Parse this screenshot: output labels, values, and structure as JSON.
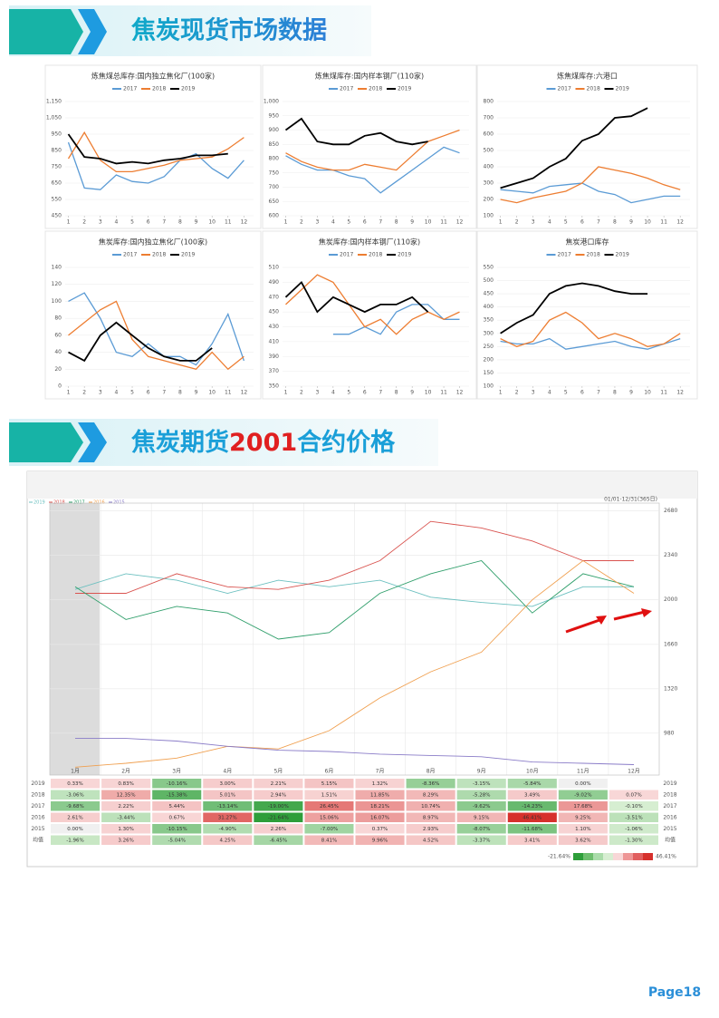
{
  "header1": {
    "title": "焦炭现货市场数据"
  },
  "header2": {
    "part1": "焦炭期货",
    "part2": "2001",
    "part3": "合约价格"
  },
  "page_number": "Page18",
  "chart_data": [
    {
      "type": "line",
      "title": "炼焦煤总库存:国内独立焦化厂(100家)",
      "x": [
        1,
        2,
        3,
        4,
        5,
        6,
        7,
        8,
        9,
        10,
        11,
        12
      ],
      "xlim": [
        0.8,
        12.6
      ],
      "xticks": [
        1,
        2,
        3,
        4,
        5,
        6,
        7,
        8,
        9,
        10,
        11,
        12
      ],
      "ylim": [
        450,
        1150
      ],
      "yticks": [
        450,
        550,
        650,
        750,
        850,
        950,
        {
          "value": 1050,
          "label": "1,050"
        },
        {
          "value": 1150,
          "label": "1,150"
        }
      ],
      "series": [
        {
          "name": "2017",
          "color": "#5b9bd5",
          "values": [
            900,
            620,
            610,
            700,
            660,
            650,
            690,
            790,
            830,
            740,
            680,
            790
          ]
        },
        {
          "name": "2018",
          "color": "#ed7d31",
          "values": [
            800,
            960,
            790,
            720,
            720,
            740,
            760,
            790,
            800,
            810,
            860,
            930
          ]
        },
        {
          "name": "2019",
          "color": "#000000",
          "values": [
            950,
            810,
            800,
            770,
            780,
            770,
            790,
            800,
            820,
            820,
            830,
            null
          ]
        }
      ]
    },
    {
      "type": "line",
      "title": "炼焦煤库存:国内样本钢厂(110家)",
      "x": [
        1,
        2,
        3,
        4,
        5,
        6,
        7,
        8,
        9,
        10,
        11,
        12
      ],
      "xlim": [
        0.8,
        12.6
      ],
      "xticks": [
        1,
        2,
        3,
        4,
        5,
        6,
        7,
        8,
        9,
        10,
        11,
        12
      ],
      "ylim": [
        600,
        1000
      ],
      "yticks": [
        600,
        650,
        700,
        750,
        800,
        850,
        900,
        950,
        {
          "value": 1000,
          "label": "1,000"
        }
      ],
      "series": [
        {
          "name": "2017",
          "color": "#5b9bd5",
          "values": [
            810,
            780,
            760,
            760,
            740,
            730,
            680,
            720,
            760,
            800,
            840,
            820
          ]
        },
        {
          "name": "2018",
          "color": "#ed7d31",
          "values": [
            820,
            790,
            770,
            760,
            760,
            780,
            770,
            760,
            810,
            860,
            880,
            900
          ]
        },
        {
          "name": "2019",
          "color": "#000000",
          "values": [
            900,
            940,
            860,
            850,
            850,
            880,
            890,
            860,
            850,
            860,
            null,
            null
          ]
        }
      ]
    },
    {
      "type": "line",
      "title": "炼焦煤库存:六港口",
      "x": [
        1,
        2,
        3,
        4,
        5,
        6,
        7,
        8,
        9,
        10,
        11,
        12
      ],
      "xlim": [
        0.8,
        12.6
      ],
      "xticks": [
        1,
        2,
        3,
        4,
        5,
        6,
        7,
        8,
        9,
        10,
        11,
        12
      ],
      "ylim": [
        100,
        800
      ],
      "yticks": [
        100,
        200,
        300,
        400,
        500,
        600,
        700,
        800
      ],
      "series": [
        {
          "name": "2017",
          "color": "#5b9bd5",
          "values": [
            260,
            250,
            240,
            280,
            290,
            300,
            250,
            230,
            180,
            200,
            220,
            220
          ]
        },
        {
          "name": "2018",
          "color": "#ed7d31",
          "values": [
            200,
            180,
            210,
            230,
            250,
            300,
            400,
            380,
            360,
            330,
            290,
            260
          ]
        },
        {
          "name": "2019",
          "color": "#000000",
          "values": [
            270,
            300,
            330,
            400,
            450,
            560,
            600,
            700,
            710,
            760,
            null,
            null
          ]
        }
      ]
    },
    {
      "type": "line",
      "title": "焦炭库存:国内独立焦化厂(100家)",
      "x": [
        1,
        2,
        3,
        4,
        5,
        6,
        7,
        8,
        9,
        10,
        11,
        12
      ],
      "xlim": [
        0.8,
        12.6
      ],
      "xticks": [
        1,
        2,
        3,
        4,
        5,
        6,
        7,
        8,
        9,
        10,
        11,
        12
      ],
      "ylim": [
        0,
        140
      ],
      "yticks": [
        0,
        20,
        40,
        60,
        80,
        100,
        120,
        140
      ],
      "series": [
        {
          "name": "2017",
          "color": "#5b9bd5",
          "values": [
            100,
            110,
            80,
            40,
            35,
            50,
            35,
            35,
            25,
            50,
            85,
            30
          ]
        },
        {
          "name": "2018",
          "color": "#ed7d31",
          "values": [
            60,
            75,
            90,
            100,
            55,
            35,
            30,
            25,
            20,
            40,
            20,
            35
          ]
        },
        {
          "name": "2019",
          "color": "#000000",
          "values": [
            40,
            30,
            60,
            75,
            60,
            45,
            35,
            30,
            30,
            45,
            null,
            null
          ]
        }
      ]
    },
    {
      "type": "line",
      "title": "焦炭库存:国内样本钢厂(110家)",
      "x": [
        1,
        2,
        3,
        4,
        5,
        6,
        7,
        8,
        9,
        10,
        11,
        12
      ],
      "xlim": [
        0.8,
        12.6
      ],
      "xticks": [
        1,
        2,
        3,
        4,
        5,
        6,
        7,
        8,
        9,
        10,
        11,
        12
      ],
      "ylim": [
        350,
        510
      ],
      "yticks": [
        350,
        370,
        390,
        410,
        430,
        450,
        470,
        490,
        510
      ],
      "series": [
        {
          "name": "2017",
          "color": "#5b9bd5",
          "values": [
            null,
            null,
            null,
            420,
            420,
            430,
            420,
            450,
            460,
            460,
            440,
            440
          ]
        },
        {
          "name": "2018",
          "color": "#ed7d31",
          "values": [
            460,
            480,
            500,
            490,
            460,
            430,
            440,
            420,
            440,
            450,
            440,
            450
          ]
        },
        {
          "name": "2019",
          "color": "#000000",
          "values": [
            470,
            490,
            450,
            470,
            460,
            450,
            460,
            460,
            470,
            450,
            null,
            null
          ]
        }
      ]
    },
    {
      "type": "line",
      "title": "焦炭港口库存",
      "x": [
        1,
        2,
        3,
        4,
        5,
        6,
        7,
        8,
        9,
        10,
        11,
        12
      ],
      "xlim": [
        0.8,
        12.6
      ],
      "xticks": [
        1,
        2,
        3,
        4,
        5,
        6,
        7,
        8,
        9,
        10,
        11,
        12
      ],
      "ylim": [
        100,
        550
      ],
      "yticks": [
        100,
        150,
        200,
        250,
        300,
        350,
        400,
        450,
        500,
        550
      ],
      "series": [
        {
          "name": "2017",
          "color": "#5b9bd5",
          "values": [
            270,
            260,
            260,
            280,
            240,
            250,
            260,
            270,
            250,
            240,
            260,
            280
          ]
        },
        {
          "name": "2018",
          "color": "#ed7d31",
          "values": [
            280,
            250,
            270,
            350,
            380,
            340,
            280,
            300,
            280,
            250,
            260,
            300
          ]
        },
        {
          "name": "2019",
          "color": "#000000",
          "values": [
            300,
            340,
            370,
            450,
            480,
            490,
            480,
            460,
            450,
            450,
            null,
            null
          ]
        }
      ]
    },
    {
      "type": "futures",
      "date_range": "01/01-12/31(365日)",
      "categories": [
        "1月",
        "2月",
        "3月",
        "4月",
        "5月",
        "6月",
        "7月",
        "8月",
        "9月",
        "10月",
        "11月",
        "12月"
      ],
      "ylim": [
        660,
        2740
      ],
      "yticks": [
        980,
        1320,
        1660,
        2000,
        2340,
        2680
      ],
      "series": [
        {
          "name": "2019",
          "color": "#6cc0c0",
          "values": [
            2080,
            2200,
            2150,
            2050,
            2150,
            2100,
            2150,
            2020,
            1980,
            1950,
            2100,
            2100
          ]
        },
        {
          "name": "2018",
          "color": "#d9534f",
          "values": [
            2050,
            2050,
            2200,
            2100,
            2080,
            2150,
            2300,
            2600,
            2550,
            2450,
            2300,
            2300
          ]
        },
        {
          "name": "2017",
          "color": "#2e9e6a",
          "values": [
            2100,
            1850,
            1950,
            1900,
            1700,
            1750,
            2050,
            2200,
            2300,
            1900,
            2200,
            2100
          ]
        },
        {
          "name": "2016",
          "color": "#f0a050",
          "values": [
            720,
            750,
            790,
            880,
            860,
            1000,
            1250,
            1450,
            1600,
            2000,
            2300,
            2050
          ]
        },
        {
          "name": "2015",
          "color": "#8a7cc8",
          "values": [
            940,
            940,
            920,
            880,
            850,
            840,
            820,
            810,
            800,
            760,
            750,
            740
          ]
        }
      ]
    }
  ],
  "table": {
    "header": [
      "1月",
      "2月",
      "3月",
      "4月",
      "5月",
      "6月",
      "7月",
      "8月",
      "9月",
      "10月",
      "11月",
      "12月"
    ],
    "rows": [
      {
        "label": "2019",
        "cells": [
          "0.33%",
          "0.83%",
          "-10.16%",
          "3.00%",
          "2.21%",
          "5.15%",
          "1.32%",
          "-8.36%",
          "-3.15%",
          "-5.84%",
          "0.00%",
          null
        ]
      },
      {
        "label": "2018",
        "cells": [
          "-3.06%",
          "12.35%",
          "-15.38%",
          "5.01%",
          "2.94%",
          "1.51%",
          "11.85%",
          "8.29%",
          "-5.28%",
          "3.49%",
          "-9.02%",
          "0.07%"
        ]
      },
      {
        "label": "2017",
        "cells": [
          "-9.68%",
          "2.22%",
          "5.44%",
          "-13.14%",
          "-19.00%",
          "26.45%",
          "18.21%",
          "10.74%",
          "-9.62%",
          "-14.23%",
          "17.68%",
          "-0.10%"
        ]
      },
      {
        "label": "2016",
        "cells": [
          "2.61%",
          "-3.44%",
          "0.67%",
          "31.27%",
          "-21.64%",
          "15.06%",
          "16.07%",
          "8.97%",
          "9.15%",
          "46.41%",
          "9.25%",
          "-3.51%"
        ]
      },
      {
        "label": "2015",
        "cells": [
          "0.00%",
          "1.30%",
          "-10.15%",
          "-4.90%",
          "2.26%",
          "-7.00%",
          "0.37%",
          "2.93%",
          "-8.07%",
          "-11.68%",
          "1.10%",
          "-1.06%"
        ]
      },
      {
        "label": "均值",
        "cells": [
          "-1.96%",
          "3.26%",
          "-5.04%",
          "4.25%",
          "-6.45%",
          "8.41%",
          "9.96%",
          "4.52%",
          "-3.37%",
          "3.41%",
          "3.62%",
          "-1.30%"
        ]
      }
    ],
    "scale": [
      "-21.64%",
      "46.41%"
    ]
  }
}
